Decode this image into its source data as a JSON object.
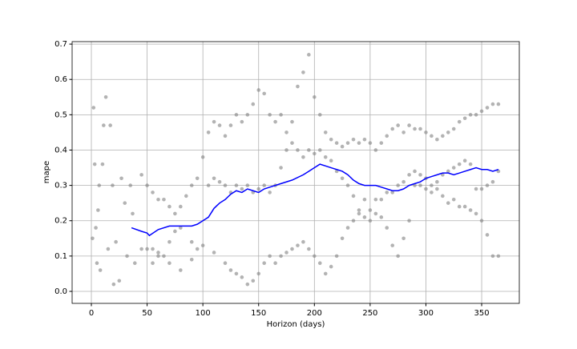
{
  "chart_data": {
    "type": "scatter",
    "x_label": "Horizon (days)",
    "y_label": "mape",
    "xlim": [
      -17.25,
      383.75
    ],
    "ylim": [
      -0.034,
      0.707
    ],
    "xticks": [
      0,
      50,
      100,
      150,
      200,
      250,
      300,
      350
    ],
    "yticks": [
      {
        "value": 0,
        "label": "0.0"
      },
      0.1,
      0.2,
      0.3,
      0.4,
      0.5,
      0.6,
      0.7
    ],
    "grid": true,
    "series": [
      {
        "kind": "scatter",
        "color": "#808080",
        "x": [
          1,
          2,
          3,
          4,
          5,
          6,
          7,
          8,
          10,
          11,
          13,
          15,
          17,
          19,
          20,
          22,
          25,
          27,
          30,
          32,
          35,
          37,
          39,
          45,
          50,
          55,
          60,
          65,
          70,
          75,
          80,
          85,
          90,
          95,
          100,
          105,
          110,
          115,
          120,
          125,
          130,
          135,
          140,
          145,
          150,
          155,
          160,
          165,
          170,
          175,
          180,
          185,
          190,
          195,
          200,
          205,
          210,
          215,
          220,
          225,
          230,
          235,
          240,
          245,
          250,
          255,
          260,
          265,
          270,
          275,
          280,
          285,
          290,
          295,
          300,
          305,
          310,
          315,
          320,
          325,
          330,
          335,
          340,
          345,
          350,
          355,
          360,
          365,
          45,
          50,
          55,
          60,
          65,
          70,
          75,
          80,
          90,
          100,
          105,
          110,
          115,
          120,
          125,
          130,
          135,
          140,
          145,
          150,
          155,
          160,
          165,
          170,
          175,
          180,
          185,
          190,
          195,
          200,
          205,
          210,
          215,
          220,
          225,
          230,
          235,
          240,
          245,
          250,
          255,
          260,
          265,
          270,
          275,
          280,
          285,
          290,
          295,
          300,
          305,
          310,
          315,
          320,
          325,
          330,
          335,
          340,
          345,
          350,
          355,
          360,
          365,
          55,
          60,
          70,
          80,
          90,
          95,
          110,
          120,
          125,
          130,
          135,
          140,
          145,
          150,
          155,
          160,
          165,
          170,
          175,
          180,
          185,
          190,
          195,
          200,
          205,
          210,
          215,
          220,
          225,
          230,
          235,
          240,
          245,
          250,
          255,
          260,
          265,
          270,
          275,
          280,
          285,
          290,
          295,
          300,
          305,
          310,
          315,
          320,
          325,
          330,
          335,
          340,
          345,
          350,
          355,
          360,
          365
        ],
        "values": [
          0.15,
          0.52,
          0.36,
          0.18,
          0.08,
          0.23,
          0.3,
          0.06,
          0.36,
          0.47,
          0.55,
          0.12,
          0.47,
          0.3,
          0.02,
          0.14,
          0.03,
          0.32,
          0.25,
          0.1,
          0.3,
          0.22,
          0.08,
          0.33,
          0.3,
          0.28,
          0.26,
          0.26,
          0.24,
          0.22,
          0.24,
          0.27,
          0.3,
          0.32,
          0.38,
          0.45,
          0.48,
          0.47,
          0.44,
          0.47,
          0.5,
          0.48,
          0.5,
          0.53,
          0.57,
          0.56,
          0.5,
          0.48,
          0.5,
          0.45,
          0.48,
          0.58,
          0.62,
          0.67,
          0.55,
          0.5,
          0.45,
          0.43,
          0.42,
          0.41,
          0.42,
          0.43,
          0.42,
          0.43,
          0.42,
          0.4,
          0.42,
          0.44,
          0.46,
          0.47,
          0.45,
          0.47,
          0.46,
          0.46,
          0.45,
          0.44,
          0.43,
          0.44,
          0.45,
          0.46,
          0.48,
          0.49,
          0.5,
          0.5,
          0.51,
          0.52,
          0.53,
          0.53,
          0.12,
          0.12,
          0.12,
          0.11,
          0.1,
          0.14,
          0.17,
          0.18,
          0.14,
          0.13,
          0.3,
          0.32,
          0.31,
          0.3,
          0.28,
          0.3,
          0.29,
          0.3,
          0.28,
          0.29,
          0.3,
          0.28,
          0.3,
          0.35,
          0.4,
          0.42,
          0.4,
          0.38,
          0.4,
          0.39,
          0.4,
          0.38,
          0.37,
          0.34,
          0.32,
          0.3,
          0.27,
          0.23,
          0.21,
          0.2,
          0.22,
          0.21,
          0.18,
          0.13,
          0.1,
          0.15,
          0.2,
          0.3,
          0.33,
          0.32,
          0.28,
          0.29,
          0.27,
          0.25,
          0.26,
          0.24,
          0.24,
          0.23,
          0.22,
          0.2,
          0.16,
          0.1,
          0.1,
          0.08,
          0.1,
          0.08,
          0.06,
          0.09,
          0.12,
          0.11,
          0.08,
          0.06,
          0.05,
          0.04,
          0.02,
          0.03,
          0.05,
          0.08,
          0.1,
          0.08,
          0.1,
          0.11,
          0.12,
          0.13,
          0.14,
          0.12,
          0.1,
          0.08,
          0.05,
          0.07,
          0.1,
          0.15,
          0.18,
          0.2,
          0.22,
          0.26,
          0.23,
          0.26,
          0.26,
          0.28,
          0.28,
          0.3,
          0.31,
          0.33,
          0.34,
          0.3,
          0.29,
          0.3,
          0.31,
          0.33,
          0.34,
          0.35,
          0.36,
          0.37,
          0.36,
          0.29,
          0.29,
          0.3,
          0.31,
          0.34
        ]
      },
      {
        "kind": "line",
        "color": "#0000ff",
        "x": [
          36,
          45,
          50,
          52,
          60,
          70,
          80,
          90,
          95,
          100,
          105,
          110,
          115,
          120,
          125,
          130,
          135,
          140,
          145,
          150,
          155,
          160,
          170,
          180,
          190,
          195,
          200,
          205,
          210,
          215,
          220,
          225,
          230,
          235,
          240,
          245,
          250,
          255,
          260,
          265,
          270,
          275,
          280,
          285,
          290,
          295,
          300,
          305,
          310,
          315,
          320,
          325,
          330,
          335,
          340,
          345,
          350,
          355,
          360,
          365
        ],
        "values": [
          0.18,
          0.17,
          0.165,
          0.158,
          0.175,
          0.185,
          0.185,
          0.185,
          0.19,
          0.2,
          0.21,
          0.235,
          0.25,
          0.26,
          0.275,
          0.285,
          0.28,
          0.29,
          0.285,
          0.28,
          0.29,
          0.295,
          0.305,
          0.315,
          0.33,
          0.34,
          0.35,
          0.36,
          0.355,
          0.35,
          0.345,
          0.34,
          0.33,
          0.315,
          0.305,
          0.3,
          0.3,
          0.3,
          0.295,
          0.29,
          0.285,
          0.285,
          0.29,
          0.3,
          0.305,
          0.31,
          0.32,
          0.325,
          0.33,
          0.335,
          0.335,
          0.33,
          0.335,
          0.34,
          0.345,
          0.35,
          0.345,
          0.345,
          0.34,
          0.345
        ]
      }
    ]
  }
}
